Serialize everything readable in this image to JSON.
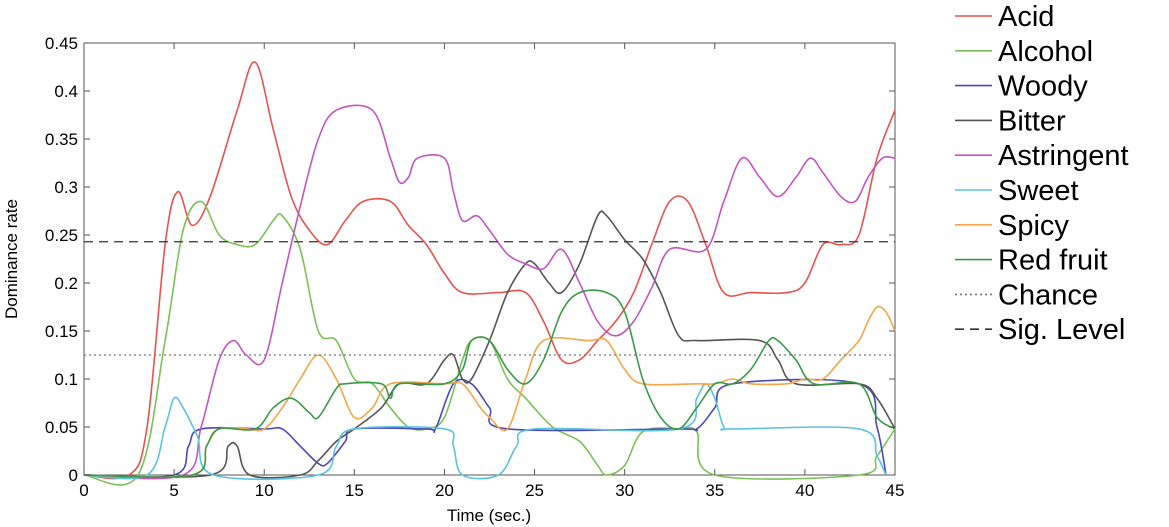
{
  "chart_data": {
    "type": "line",
    "xlabel": "Time (sec.)",
    "ylabel": "Dominance rate",
    "xlim": [
      0,
      45
    ],
    "ylim": [
      0,
      0.45
    ],
    "xticks": [
      "0",
      "5",
      "10",
      "15",
      "20",
      "25",
      "30",
      "35",
      "40",
      "45"
    ],
    "yticks": [
      "0",
      "0.05",
      "0.1",
      "0.15",
      "0.2",
      "0.25",
      "0.3",
      "0.35",
      "0.4",
      "0.45"
    ],
    "grid": false,
    "legend_position": "right-outside",
    "series": [
      {
        "name": "Acid",
        "color": "#e8524e",
        "style": "solid",
        "points": [
          [
            0,
            0
          ],
          [
            2.5,
            0
          ],
          [
            3.5,
            0.05
          ],
          [
            4.5,
            0.24
          ],
          [
            5.2,
            0.295
          ],
          [
            6,
            0.26
          ],
          [
            7,
            0.29
          ],
          [
            8.5,
            0.38
          ],
          [
            9.5,
            0.43
          ],
          [
            10.5,
            0.36
          ],
          [
            11.5,
            0.29
          ],
          [
            12.5,
            0.255
          ],
          [
            13.5,
            0.24
          ],
          [
            14.5,
            0.265
          ],
          [
            15.5,
            0.285
          ],
          [
            17,
            0.285
          ],
          [
            18,
            0.26
          ],
          [
            19,
            0.24
          ],
          [
            20,
            0.21
          ],
          [
            21,
            0.19
          ],
          [
            23,
            0.19
          ],
          [
            24.5,
            0.19
          ],
          [
            25.5,
            0.16
          ],
          [
            26.5,
            0.12
          ],
          [
            27.5,
            0.12
          ],
          [
            28.5,
            0.14
          ],
          [
            29.5,
            0.16
          ],
          [
            30.5,
            0.19
          ],
          [
            31.5,
            0.24
          ],
          [
            32.5,
            0.285
          ],
          [
            33.5,
            0.285
          ],
          [
            34.5,
            0.24
          ],
          [
            35.5,
            0.19
          ],
          [
            37,
            0.19
          ],
          [
            39,
            0.19
          ],
          [
            40,
            0.2
          ],
          [
            41,
            0.24
          ],
          [
            42,
            0.24
          ],
          [
            43,
            0.25
          ],
          [
            44,
            0.33
          ],
          [
            45,
            0.38
          ]
        ]
      },
      {
        "name": "Alcohol",
        "color": "#7cc05a",
        "style": "solid",
        "points": [
          [
            0,
            0
          ],
          [
            3,
            0
          ],
          [
            4.5,
            0.14
          ],
          [
            5.5,
            0.255
          ],
          [
            6.5,
            0.285
          ],
          [
            7.5,
            0.25
          ],
          [
            8.5,
            0.24
          ],
          [
            9.5,
            0.24
          ],
          [
            10.5,
            0.265
          ],
          [
            11,
            0.27
          ],
          [
            12,
            0.235
          ],
          [
            13,
            0.15
          ],
          [
            14,
            0.14
          ],
          [
            15,
            0.1
          ],
          [
            16,
            0.095
          ],
          [
            17,
            0.07
          ],
          [
            18,
            0.05
          ],
          [
            19,
            0.048
          ],
          [
            20,
            0.06
          ],
          [
            21,
            0.12
          ],
          [
            21.5,
            0.14
          ],
          [
            22.5,
            0.14
          ],
          [
            23.5,
            0.1
          ],
          [
            24.5,
            0.08
          ],
          [
            26,
            0.05
          ],
          [
            27.5,
            0.035
          ],
          [
            28.5,
            0.01
          ],
          [
            29,
            0
          ],
          [
            30,
            0.01
          ],
          [
            31,
            0.045
          ],
          [
            33,
            0.048
          ],
          [
            34,
            0.045
          ],
          [
            35,
            0
          ],
          [
            43,
            0
          ],
          [
            44,
            0.02
          ],
          [
            45,
            0.048
          ]
        ]
      },
      {
        "name": "Woody",
        "color": "#4a48b8",
        "style": "solid",
        "points": [
          [
            0,
            0
          ],
          [
            5,
            0
          ],
          [
            5.8,
            0.03
          ],
          [
            6.5,
            0.048
          ],
          [
            10,
            0.048
          ],
          [
            11,
            0.048
          ],
          [
            12,
            0.03
          ],
          [
            13,
            0.012
          ],
          [
            13.5,
            0.012
          ],
          [
            14.5,
            0.035
          ],
          [
            15,
            0.048
          ],
          [
            19,
            0.048
          ],
          [
            19.5,
            0.048
          ],
          [
            20.5,
            0.095
          ],
          [
            21.5,
            0.095
          ],
          [
            22.5,
            0.07
          ],
          [
            23.5,
            0.048
          ],
          [
            33,
            0.048
          ],
          [
            34,
            0.048
          ],
          [
            35,
            0.07
          ],
          [
            36,
            0.095
          ],
          [
            43,
            0.095
          ],
          [
            44,
            0.05
          ],
          [
            44.5,
            0
          ]
        ]
      },
      {
        "name": "Bitter",
        "color": "#555555",
        "style": "solid",
        "points": [
          [
            0,
            0
          ],
          [
            7,
            0
          ],
          [
            8,
            0.03
          ],
          [
            8.5,
            0.03
          ],
          [
            9.2,
            0
          ],
          [
            12,
            0
          ],
          [
            13,
            0.015
          ],
          [
            14,
            0.035
          ],
          [
            15,
            0.048
          ],
          [
            16.5,
            0.07
          ],
          [
            17.5,
            0.095
          ],
          [
            19,
            0.095
          ],
          [
            20,
            0.12
          ],
          [
            20.5,
            0.125
          ],
          [
            21,
            0.1
          ],
          [
            21.5,
            0.1
          ],
          [
            22.5,
            0.14
          ],
          [
            23.5,
            0.19
          ],
          [
            24.5,
            0.22
          ],
          [
            25,
            0.22
          ],
          [
            25.8,
            0.2
          ],
          [
            26.5,
            0.19
          ],
          [
            27.5,
            0.22
          ],
          [
            28.5,
            0.27
          ],
          [
            29,
            0.27
          ],
          [
            30,
            0.245
          ],
          [
            31,
            0.225
          ],
          [
            32,
            0.19
          ],
          [
            33,
            0.145
          ],
          [
            34,
            0.14
          ],
          [
            37.5,
            0.14
          ],
          [
            38.5,
            0.12
          ],
          [
            39.5,
            0.095
          ],
          [
            43,
            0.095
          ],
          [
            44,
            0.08
          ],
          [
            45,
            0.048
          ]
        ]
      },
      {
        "name": "Astringent",
        "color": "#c455bf",
        "style": "solid",
        "points": [
          [
            0,
            0
          ],
          [
            5.5,
            0
          ],
          [
            6.5,
            0.05
          ],
          [
            7.5,
            0.12
          ],
          [
            8.3,
            0.14
          ],
          [
            9,
            0.125
          ],
          [
            10,
            0.12
          ],
          [
            11,
            0.2
          ],
          [
            12,
            0.28
          ],
          [
            13,
            0.35
          ],
          [
            14,
            0.38
          ],
          [
            16,
            0.38
          ],
          [
            17,
            0.33
          ],
          [
            17.5,
            0.305
          ],
          [
            18,
            0.31
          ],
          [
            18.5,
            0.33
          ],
          [
            20,
            0.33
          ],
          [
            20.5,
            0.295
          ],
          [
            21,
            0.265
          ],
          [
            21.8,
            0.27
          ],
          [
            22.5,
            0.255
          ],
          [
            23.5,
            0.23
          ],
          [
            24.5,
            0.22
          ],
          [
            25.5,
            0.215
          ],
          [
            26.5,
            0.235
          ],
          [
            27.5,
            0.2
          ],
          [
            28.5,
            0.16
          ],
          [
            29.5,
            0.145
          ],
          [
            30.5,
            0.16
          ],
          [
            31.5,
            0.195
          ],
          [
            32.5,
            0.235
          ],
          [
            34.5,
            0.235
          ],
          [
            35.5,
            0.285
          ],
          [
            36.5,
            0.33
          ],
          [
            37.5,
            0.31
          ],
          [
            38.5,
            0.29
          ],
          [
            39.5,
            0.31
          ],
          [
            40.3,
            0.33
          ],
          [
            41,
            0.315
          ],
          [
            42,
            0.29
          ],
          [
            42.8,
            0.285
          ],
          [
            43.5,
            0.31
          ],
          [
            44.3,
            0.33
          ],
          [
            45,
            0.33
          ]
        ]
      },
      {
        "name": "Sweet",
        "color": "#5bc3e0",
        "style": "solid",
        "points": [
          [
            0,
            0
          ],
          [
            3.5,
            0
          ],
          [
            4.5,
            0.05
          ],
          [
            5,
            0.08
          ],
          [
            5.5,
            0.07
          ],
          [
            6.3,
            0.04
          ],
          [
            7.2,
            0
          ],
          [
            13,
            0
          ],
          [
            14,
            0.03
          ],
          [
            15,
            0.048
          ],
          [
            20,
            0.048
          ],
          [
            20.5,
            0.03
          ],
          [
            21,
            0
          ],
          [
            23,
            0
          ],
          [
            24,
            0.03
          ],
          [
            25,
            0.048
          ],
          [
            33,
            0.048
          ],
          [
            34,
            0.08
          ],
          [
            34.5,
            0.095
          ],
          [
            35,
            0.08
          ],
          [
            35.5,
            0.05
          ],
          [
            36,
            0.048
          ],
          [
            43,
            0.048
          ],
          [
            44,
            0.02
          ],
          [
            44.5,
            0
          ]
        ]
      },
      {
        "name": "Spicy",
        "color": "#f5a54a",
        "style": "solid",
        "points": [
          [
            0,
            0
          ],
          [
            6,
            0
          ],
          [
            6.8,
            0.03
          ],
          [
            7.5,
            0.048
          ],
          [
            9,
            0.048
          ],
          [
            10,
            0.048
          ],
          [
            11,
            0.07
          ],
          [
            12,
            0.1
          ],
          [
            13,
            0.125
          ],
          [
            14,
            0.1
          ],
          [
            15,
            0.06
          ],
          [
            16,
            0.07
          ],
          [
            17,
            0.095
          ],
          [
            20,
            0.095
          ],
          [
            21,
            0.095
          ],
          [
            22,
            0.07
          ],
          [
            22.5,
            0.06
          ],
          [
            23.5,
            0.048
          ],
          [
            24.5,
            0.1
          ],
          [
            25.5,
            0.14
          ],
          [
            28,
            0.14
          ],
          [
            29,
            0.14
          ],
          [
            30,
            0.11
          ],
          [
            31,
            0.095
          ],
          [
            34,
            0.095
          ],
          [
            35,
            0.095
          ],
          [
            36,
            0.1
          ],
          [
            37,
            0.095
          ],
          [
            39,
            0.095
          ],
          [
            40,
            0.1
          ],
          [
            41,
            0.1
          ],
          [
            42,
            0.12
          ],
          [
            43,
            0.14
          ],
          [
            43.5,
            0.16
          ],
          [
            44,
            0.175
          ],
          [
            44.5,
            0.17
          ],
          [
            45,
            0.15
          ]
        ]
      },
      {
        "name": "Red fruit",
        "color": "#3a9a47",
        "style": "solid",
        "points": [
          [
            0,
            0
          ],
          [
            6,
            0
          ],
          [
            6.8,
            0.03
          ],
          [
            7.5,
            0.048
          ],
          [
            9.5,
            0.048
          ],
          [
            10.5,
            0.07
          ],
          [
            11.5,
            0.08
          ],
          [
            12.5,
            0.065
          ],
          [
            13,
            0.06
          ],
          [
            14,
            0.09
          ],
          [
            14.5,
            0.095
          ],
          [
            16.5,
            0.095
          ],
          [
            17,
            0.08
          ],
          [
            17.5,
            0.095
          ],
          [
            20,
            0.095
          ],
          [
            21,
            0.11
          ],
          [
            21.5,
            0.14
          ],
          [
            22.5,
            0.14
          ],
          [
            23.5,
            0.11
          ],
          [
            24.5,
            0.095
          ],
          [
            25.5,
            0.12
          ],
          [
            26.5,
            0.17
          ],
          [
            27.5,
            0.19
          ],
          [
            29,
            0.19
          ],
          [
            30,
            0.17
          ],
          [
            31,
            0.1
          ],
          [
            32,
            0.06
          ],
          [
            33,
            0.048
          ],
          [
            34,
            0.07
          ],
          [
            35,
            0.095
          ],
          [
            36,
            0.095
          ],
          [
            37,
            0.11
          ],
          [
            38,
            0.14
          ],
          [
            38.5,
            0.14
          ],
          [
            39.5,
            0.12
          ],
          [
            40.5,
            0.095
          ],
          [
            43,
            0.095
          ],
          [
            44,
            0.06
          ],
          [
            45,
            0.048
          ]
        ]
      },
      {
        "name": "Chance",
        "color": "#777777",
        "style": "dotted",
        "points": [
          [
            0,
            0.125
          ],
          [
            45,
            0.125
          ]
        ]
      },
      {
        "name": "Sig. Level",
        "color": "#333333",
        "style": "dashed",
        "points": [
          [
            0,
            0.243
          ],
          [
            45,
            0.243
          ]
        ]
      }
    ]
  }
}
